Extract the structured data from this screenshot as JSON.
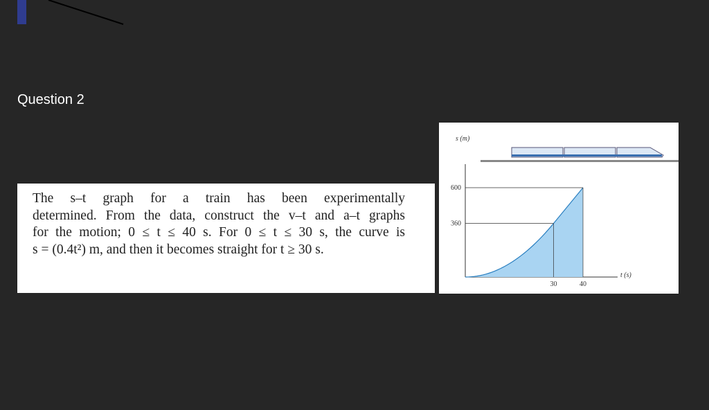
{
  "heading": "Question 2",
  "problem": {
    "lines": [
      "The s–t graph for a train has been experimentally",
      "determined. From the data, construct the v–t and a–t graphs",
      "for the motion; 0 ≤ t ≤ 40 s. For 0 ≤ t ≤ 30 s, the curve is",
      "s = (0.4t²) m, and then it becomes straight for t ≥ 30 s."
    ]
  },
  "figure": {
    "s_label": "s (m)",
    "t_label": "t (s)",
    "s_ticks": [
      360,
      600
    ],
    "t_ticks": [
      30,
      40
    ]
  }
}
